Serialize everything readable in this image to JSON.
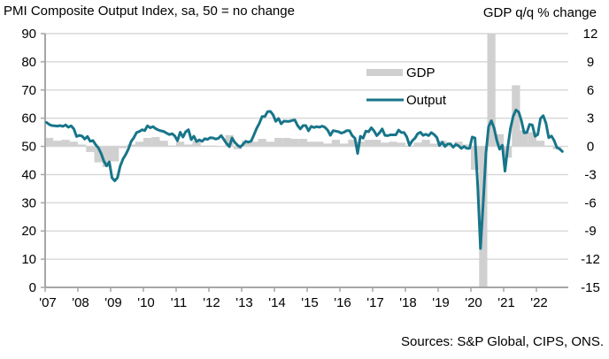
{
  "header": {
    "left_title": "PMI Composite Output Index, sa, 50 = no change",
    "right_title": "GDP q/q % change"
  },
  "footer": {
    "source": "Sources: S&P Global, CIPS, ONS."
  },
  "colors": {
    "output_line": "#17758a",
    "gdp_bar": "#d0d0d0",
    "gridline": "#d9d9d9",
    "axis": "#a6a6a6"
  },
  "chart_data": {
    "type": "bar+line",
    "title": "PMI Composite Output Index, sa, 50 = no change",
    "left_axis": {
      "label": "PMI Composite Output Index",
      "ylim": [
        0,
        90
      ],
      "ticks": [
        0,
        10,
        20,
        30,
        40,
        50,
        60,
        70,
        80,
        90
      ]
    },
    "right_axis": {
      "label": "GDP q/q % change",
      "ylim": [
        -15,
        12
      ],
      "ticks": [
        -15,
        -12,
        -9,
        -6,
        -3,
        0,
        3,
        6,
        9,
        12
      ]
    },
    "x_tick_labels": [
      "'07",
      "'08",
      "'09",
      "'10",
      "'11",
      "'12",
      "'13",
      "'14",
      "'15",
      "'16",
      "'17",
      "'18",
      "'19",
      "'20",
      "'21",
      "'22"
    ],
    "grid": true,
    "legend": {
      "placement": "top-center-right",
      "entries": [
        "GDP",
        "Output"
      ]
    },
    "series": [
      {
        "name": "Output",
        "type": "line",
        "axis": "left",
        "start": "2007-01",
        "frequency": "monthly",
        "values": [
          58.5,
          57.8,
          57.4,
          57.3,
          57.2,
          57.4,
          57.1,
          57.6,
          56.8,
          57.3,
          56.2,
          53.5,
          53.9,
          53.7,
          52.6,
          53.5,
          51.8,
          52.1,
          50.6,
          49.5,
          47.5,
          44.8,
          43.1,
          44.5,
          38.9,
          37.8,
          38.9,
          43.0,
          45.5,
          47.1,
          49.0,
          51.7,
          53.1,
          54.9,
          55.3,
          55.9,
          55.6,
          57.3,
          56.6,
          57.0,
          56.3,
          55.8,
          55.5,
          55.3,
          54.7,
          54.2,
          54.5,
          53.7,
          52.0,
          55.0,
          53.3,
          55.2,
          55.9,
          52.4,
          53.6,
          51.7,
          52.3,
          51.8,
          52.7,
          52.5,
          53.1,
          53.0,
          52.6,
          52.9,
          53.8,
          52.4,
          51.0,
          49.9,
          53.0,
          51.4,
          50.4,
          49.8,
          50.7,
          51.8,
          51.5,
          51.9,
          54.1,
          56.4,
          58.2,
          60.6,
          60.6,
          62.3,
          62.4,
          61.2,
          58.9,
          59.9,
          58.0,
          59.0,
          58.9,
          58.9,
          59.2,
          59.4,
          57.4,
          56.2,
          57.4,
          57.4,
          55.5,
          57.1,
          56.7,
          57.0,
          56.8,
          57.2,
          56.8,
          55.8,
          53.9,
          55.6,
          55.4,
          55.2,
          54.7,
          55.0,
          55.6,
          55.6,
          53.8,
          52.9,
          47.5,
          53.6,
          52.9,
          55.4,
          55.2,
          56.6,
          55.5,
          53.8,
          54.8,
          56.2,
          53.9,
          53.8,
          54.1,
          54.1,
          54.1,
          55.8,
          54.9,
          54.9,
          53.4,
          50.4,
          52.0,
          52.9,
          54.5,
          55.0,
          53.9,
          54.3,
          53.8,
          54.9,
          54.2,
          53.2,
          50.3,
          51.5,
          50.0,
          50.9,
          50.9,
          49.7,
          50.7,
          50.2,
          49.3,
          50.0,
          49.3,
          49.3,
          53.3,
          53.0,
          36.0,
          13.8,
          30.0,
          47.7,
          57.0,
          59.1,
          56.5,
          52.1,
          49.0,
          50.4,
          41.2,
          49.6,
          56.4,
          60.7,
          62.9,
          62.2,
          59.2,
          54.8,
          54.9,
          57.8,
          57.6,
          53.6,
          54.2,
          59.9,
          60.9,
          58.2,
          53.1,
          53.7,
          52.1,
          49.6,
          49.1,
          48.2
        ]
      },
      {
        "name": "GDP",
        "type": "bar",
        "axis": "right",
        "start": "2007-Q1",
        "frequency": "quarterly",
        "values": [
          0.9,
          0.6,
          0.7,
          0.5,
          0.2,
          -0.6,
          -1.7,
          -2.2,
          -1.6,
          -0.2,
          0.2,
          0.5,
          0.9,
          1.0,
          0.6,
          0.1,
          0.5,
          0.2,
          0.6,
          0.1,
          0.1,
          0.0,
          1.2,
          -0.3,
          0.6,
          0.5,
          0.8,
          0.5,
          0.9,
          0.9,
          0.8,
          0.8,
          0.5,
          0.5,
          0.3,
          0.7,
          0.3,
          0.7,
          0.5,
          0.7,
          0.7,
          0.4,
          0.5,
          0.4,
          0.1,
          0.4,
          0.7,
          0.3,
          0.6,
          0.1,
          0.5,
          0.2,
          -2.5,
          -21.0,
          17.6,
          1.3,
          -1.2,
          6.5,
          1.7,
          1.5,
          0.6,
          0.1,
          -0.3
        ]
      }
    ]
  }
}
